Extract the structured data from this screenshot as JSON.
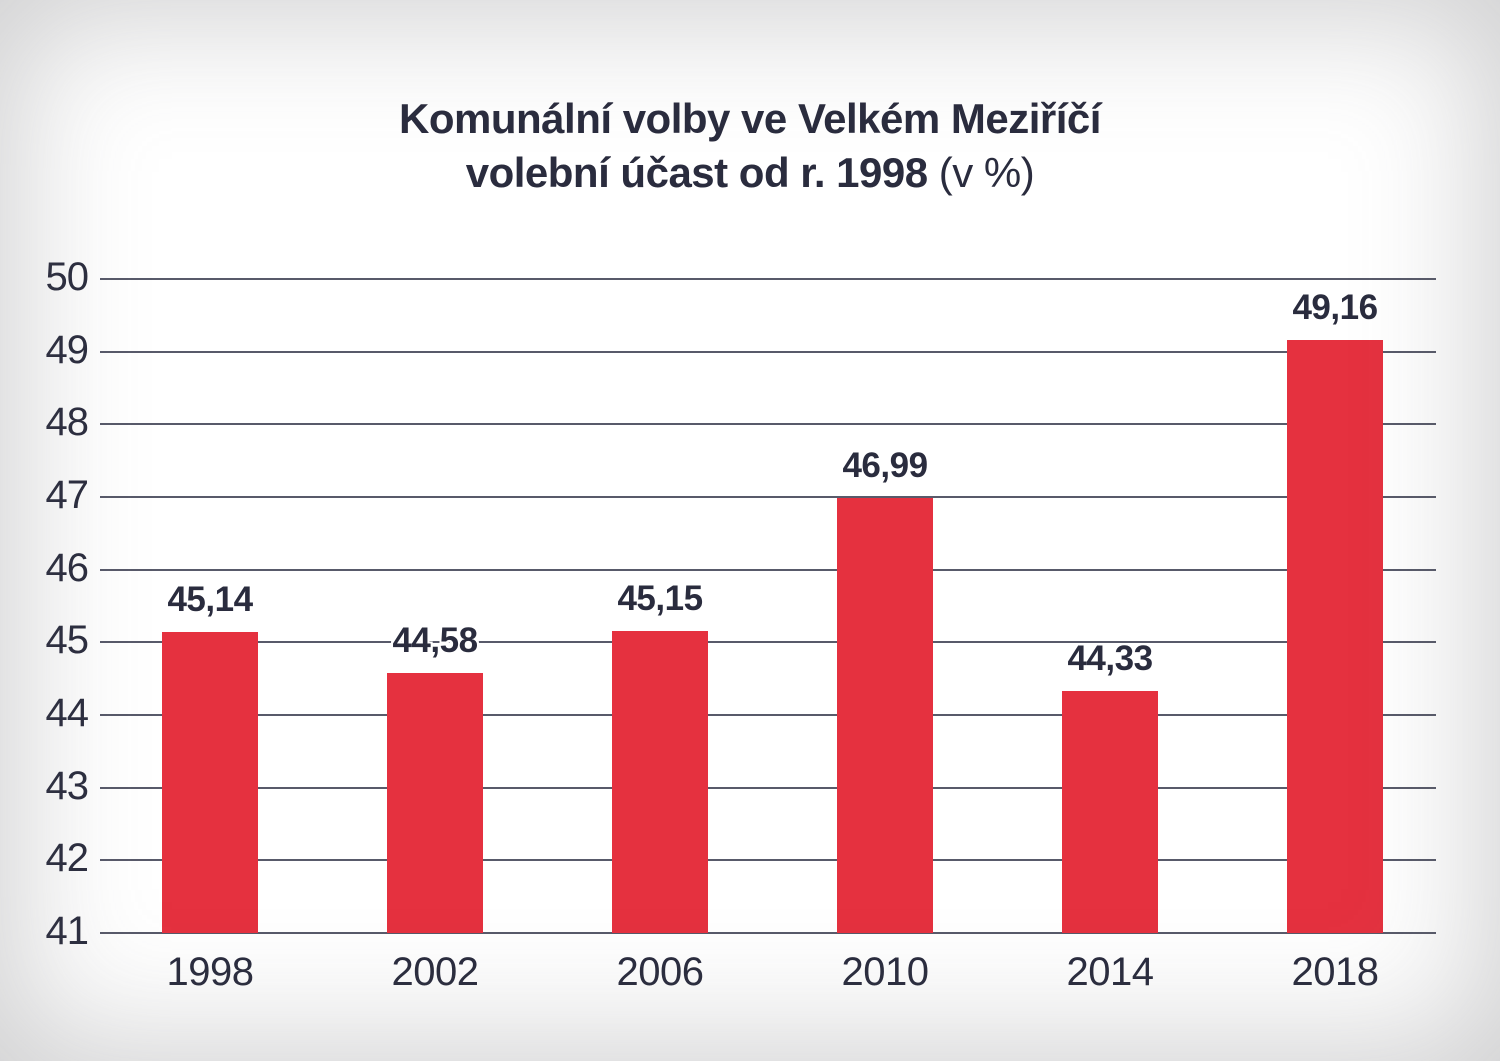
{
  "title": {
    "line1": "Komunální volby ve Velkém Meziříčí",
    "line2_bold": "volební účast od r. 1998 ",
    "line2_light": "(v %)"
  },
  "chart_data": {
    "type": "bar",
    "title": "Komunální volby ve Velkém Meziříčí volební účast od r. 1998 (v %)",
    "categories": [
      "1998",
      "2002",
      "2006",
      "2010",
      "2014",
      "2018"
    ],
    "values": [
      45.14,
      44.58,
      45.15,
      46.99,
      44.33,
      49.16
    ],
    "value_labels": [
      "45,14",
      "44,58",
      "45,15",
      "46,99",
      "44,33",
      "49,16"
    ],
    "xlabel": "",
    "ylabel": "",
    "ylim": [
      41,
      50
    ],
    "ytick_step": 1,
    "ytick_labels": [
      "41",
      "42",
      "43",
      "44",
      "45",
      "46",
      "47",
      "48",
      "49",
      "50"
    ],
    "grid": "horizontal",
    "legend": "none",
    "bar_color": "#e5313f",
    "text_color": "#2a2c3e",
    "gridline_color": "#585a6a",
    "background_color": "#ffffff"
  }
}
